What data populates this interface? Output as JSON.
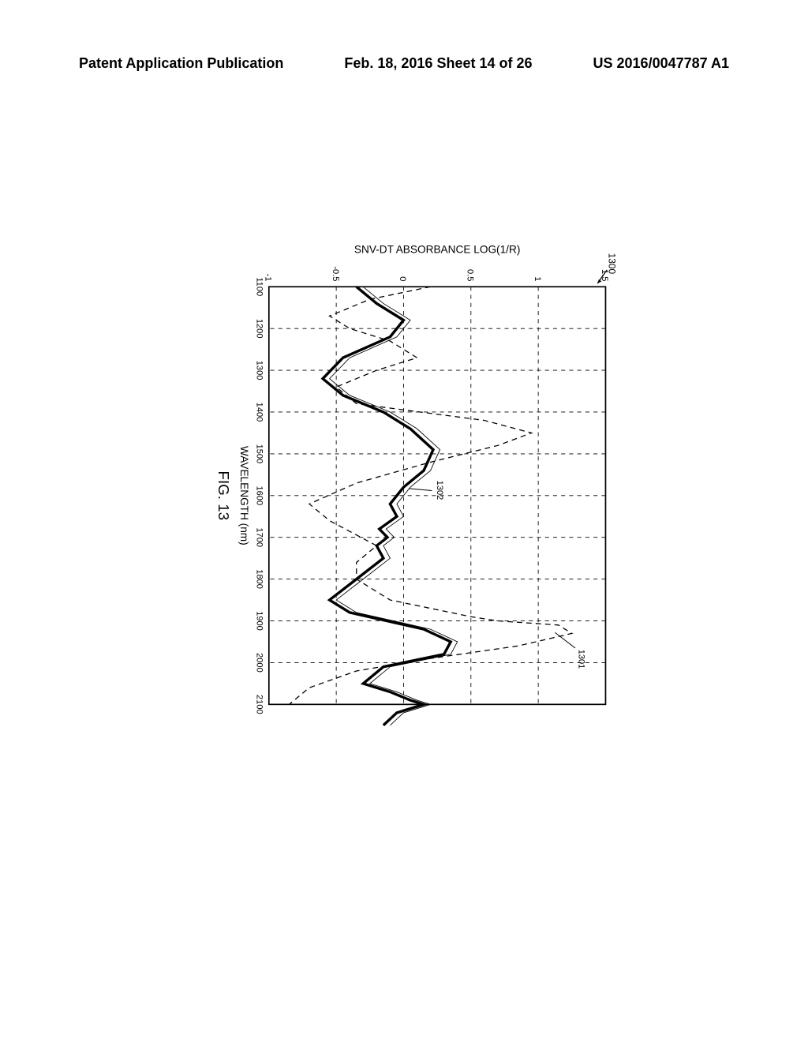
{
  "header": {
    "left": "Patent Application Publication",
    "center": "Feb. 18, 2016  Sheet 14 of 26",
    "right": "US 2016/0047787 A1"
  },
  "chart": {
    "type": "line",
    "xlabel": "WAVELENGTH (nm)",
    "ylabel": "SNV-DT ABSORBANCE LOG(1/R)",
    "figlabel": "FIG. 13",
    "figref": "1300",
    "xlim": [
      1100,
      2100
    ],
    "ylim": [
      -1,
      1.5
    ],
    "xticks": [
      1100,
      1200,
      1300,
      1400,
      1500,
      1600,
      1700,
      1800,
      1900,
      2000,
      2100
    ],
    "yticks": [
      -1,
      -0.5,
      0,
      0.5,
      1,
      1.5
    ],
    "ytick_labels": [
      "-1",
      "-0.5",
      "0",
      "0.5",
      "1",
      "1.5"
    ],
    "background_color": "#ffffff",
    "grid_color": "#000000",
    "grid_dash": "6,6",
    "axis_color": "#000000",
    "label_fontsize": 16,
    "tick_fontsize": 13,
    "figlabel_fontsize": 22,
    "refs": {
      "r1301": "1301",
      "r1302": "1302"
    },
    "series1": {
      "name": "dashed",
      "color": "#000000",
      "width": 1.5,
      "dash": "8,6",
      "data": [
        [
          1100,
          0.2
        ],
        [
          1130,
          -0.25
        ],
        [
          1170,
          -0.55
        ],
        [
          1200,
          -0.4
        ],
        [
          1230,
          -0.1
        ],
        [
          1270,
          0.1
        ],
        [
          1300,
          -0.2
        ],
        [
          1340,
          -0.5
        ],
        [
          1380,
          -0.35
        ],
        [
          1420,
          0.6
        ],
        [
          1450,
          0.95
        ],
        [
          1480,
          0.7
        ],
        [
          1520,
          0.2
        ],
        [
          1570,
          -0.35
        ],
        [
          1620,
          -0.7
        ],
        [
          1660,
          -0.55
        ],
        [
          1720,
          -0.2
        ],
        [
          1760,
          -0.35
        ],
        [
          1800,
          -0.35
        ],
        [
          1850,
          -0.1
        ],
        [
          1890,
          0.5
        ],
        [
          1900,
          0.7
        ],
        [
          1910,
          1.15
        ],
        [
          1930,
          1.25
        ],
        [
          1960,
          0.85
        ],
        [
          1990,
          0.2
        ],
        [
          2020,
          -0.35
        ],
        [
          2060,
          -0.7
        ],
        [
          2100,
          -0.85
        ]
      ]
    },
    "series2": {
      "name": "solid-thick",
      "color": "#000000",
      "width": 4,
      "data": [
        [
          1100,
          -0.35
        ],
        [
          1140,
          -0.2
        ],
        [
          1180,
          0.0
        ],
        [
          1220,
          -0.1
        ],
        [
          1270,
          -0.45
        ],
        [
          1320,
          -0.6
        ],
        [
          1360,
          -0.45
        ],
        [
          1400,
          -0.15
        ],
        [
          1440,
          0.05
        ],
        [
          1490,
          0.22
        ],
        [
          1540,
          0.15
        ],
        [
          1580,
          0.0
        ],
        [
          1620,
          -0.1
        ],
        [
          1650,
          -0.05
        ],
        [
          1680,
          -0.18
        ],
        [
          1700,
          -0.12
        ],
        [
          1720,
          -0.2
        ],
        [
          1750,
          -0.15
        ],
        [
          1800,
          -0.35
        ],
        [
          1850,
          -0.55
        ],
        [
          1880,
          -0.4
        ],
        [
          1920,
          0.15
        ],
        [
          1950,
          0.35
        ],
        [
          1980,
          0.3
        ],
        [
          2010,
          -0.15
        ],
        [
          2050,
          -0.3
        ],
        [
          2070,
          -0.1
        ],
        [
          2090,
          0.05
        ],
        [
          2100,
          0.15
        ],
        [
          2120,
          -0.05
        ],
        [
          2150,
          -0.15
        ]
      ]
    },
    "series3": {
      "name": "solid-thin",
      "color": "#000000",
      "width": 1,
      "data": [
        [
          1100,
          -0.3
        ],
        [
          1140,
          -0.15
        ],
        [
          1180,
          0.05
        ],
        [
          1220,
          -0.05
        ],
        [
          1270,
          -0.4
        ],
        [
          1320,
          -0.55
        ],
        [
          1360,
          -0.4
        ],
        [
          1400,
          -0.1
        ],
        [
          1440,
          0.1
        ],
        [
          1490,
          0.27
        ],
        [
          1540,
          0.2
        ],
        [
          1580,
          0.05
        ],
        [
          1620,
          -0.05
        ],
        [
          1650,
          0.0
        ],
        [
          1680,
          -0.13
        ],
        [
          1700,
          -0.07
        ],
        [
          1720,
          -0.15
        ],
        [
          1750,
          -0.1
        ],
        [
          1800,
          -0.3
        ],
        [
          1850,
          -0.5
        ],
        [
          1880,
          -0.35
        ],
        [
          1920,
          0.2
        ],
        [
          1950,
          0.4
        ],
        [
          1980,
          0.35
        ],
        [
          2010,
          -0.1
        ],
        [
          2050,
          -0.25
        ],
        [
          2070,
          -0.05
        ],
        [
          2090,
          0.1
        ],
        [
          2100,
          0.2
        ],
        [
          2120,
          0.0
        ],
        [
          2150,
          -0.1
        ]
      ]
    }
  }
}
